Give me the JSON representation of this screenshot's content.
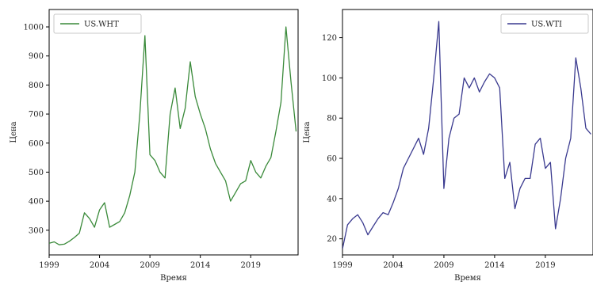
{
  "chart_data": [
    {
      "type": "line",
      "series": [
        {
          "name": "US.WHT",
          "color": "#3a8a3a",
          "x": [
            1999.0,
            1999.5,
            2000.0,
            2000.5,
            2001.0,
            2001.5,
            2002.0,
            2002.5,
            2003.0,
            2003.5,
            2004.0,
            2004.5,
            2005.0,
            2005.5,
            2006.0,
            2006.5,
            2007.0,
            2007.5,
            2008.0,
            2008.5,
            2009.0,
            2009.5,
            2010.0,
            2010.5,
            2011.0,
            2011.5,
            2012.0,
            2012.5,
            2013.0,
            2013.5,
            2014.0,
            2014.5,
            2015.0,
            2015.5,
            2016.0,
            2016.5,
            2017.0,
            2017.5,
            2018.0,
            2018.5,
            2019.0,
            2019.5,
            2020.0,
            2020.5,
            2021.0,
            2021.5,
            2022.0,
            2022.5,
            2023.0,
            2023.5
          ],
          "values": [
            255,
            260,
            250,
            252,
            262,
            275,
            290,
            360,
            340,
            310,
            370,
            395,
            310,
            320,
            330,
            360,
            420,
            500,
            700,
            970,
            560,
            540,
            500,
            480,
            700,
            790,
            650,
            720,
            880,
            760,
            700,
            650,
            580,
            530,
            500,
            470,
            400,
            430,
            460,
            470,
            540,
            500,
            480,
            520,
            550,
            640,
            740,
            1000,
            810,
            640
          ]
        }
      ],
      "xlabel": "Время",
      "ylabel": "Цена",
      "xlim": [
        1999,
        2023.7
      ],
      "ylim": [
        215,
        1060
      ],
      "xticks": [
        "1999",
        "2004",
        "2009",
        "2014",
        "2019"
      ],
      "yticks": [
        "300",
        "400",
        "500",
        "600",
        "700",
        "800",
        "900",
        "1000"
      ],
      "legend": "top-left"
    },
    {
      "type": "line",
      "series": [
        {
          "name": "US.WTI",
          "color": "#3a3a8f",
          "x": [
            1999.0,
            1999.5,
            2000.0,
            2000.5,
            2001.0,
            2001.5,
            2002.0,
            2002.5,
            2003.0,
            2003.5,
            2004.0,
            2004.5,
            2005.0,
            2005.5,
            2006.0,
            2006.5,
            2007.0,
            2007.5,
            2008.0,
            2008.5,
            2009.0,
            2009.5,
            2010.0,
            2010.5,
            2011.0,
            2011.5,
            2012.0,
            2012.5,
            2013.0,
            2013.5,
            2014.0,
            2014.5,
            2015.0,
            2015.5,
            2016.0,
            2016.5,
            2017.0,
            2017.5,
            2018.0,
            2018.5,
            2019.0,
            2019.5,
            2020.0,
            2020.5,
            2021.0,
            2021.5,
            2022.0,
            2022.5,
            2023.0,
            2023.5
          ],
          "values": [
            15,
            27,
            30,
            32,
            28,
            22,
            26,
            30,
            33,
            32,
            38,
            45,
            55,
            60,
            65,
            70,
            62,
            75,
            100,
            128,
            45,
            70,
            80,
            82,
            100,
            95,
            100,
            93,
            98,
            102,
            100,
            95,
            50,
            58,
            35,
            45,
            50,
            50,
            67,
            70,
            55,
            58,
            25,
            40,
            60,
            70,
            110,
            95,
            75,
            72
          ]
        }
      ],
      "xlabel": "Время",
      "ylabel": "Цена",
      "xlim": [
        1999,
        2023.7
      ],
      "ylim": [
        12,
        134
      ],
      "xticks": [
        "1999",
        "2004",
        "2009",
        "2014",
        "2019"
      ],
      "yticks": [
        "20",
        "40",
        "60",
        "80",
        "100",
        "120"
      ],
      "legend": "top-right"
    }
  ]
}
